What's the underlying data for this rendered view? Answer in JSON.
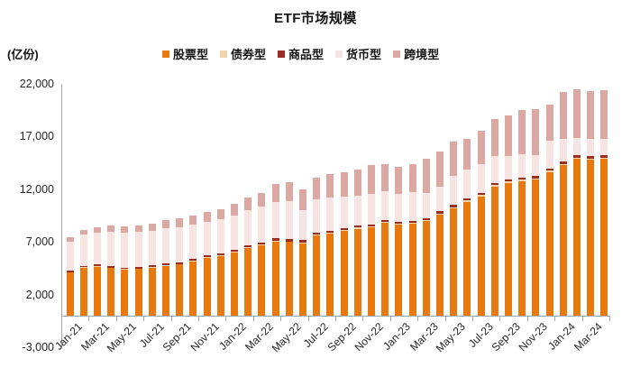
{
  "title": "ETF市场规模",
  "unit_label": "(亿份)",
  "legend": [
    {
      "label": "股票型",
      "color": "#e8790f"
    },
    {
      "label": "债券型",
      "color": "#f0d3a8"
    },
    {
      "label": "商品型",
      "color": "#9b2d23"
    },
    {
      "label": "货币型",
      "color": "#f5e4e1"
    },
    {
      "label": "跨境型",
      "color": "#dba8a3"
    }
  ],
  "colors": {
    "axis_line": "#a6a6a6",
    "text": "#262626",
    "title_text": "#141414"
  },
  "chart_data": {
    "type": "bar",
    "stacked": true,
    "title": "ETF市场规模",
    "unit": "亿份",
    "grid": false,
    "legend_position": "top",
    "categories": [
      "Jan-21",
      "Feb-21",
      "Mar-21",
      "Apr-21",
      "May-21",
      "Jun-21",
      "Jul-21",
      "Aug-21",
      "Sep-21",
      "Oct-21",
      "Nov-21",
      "Dec-21",
      "Jan-22",
      "Feb-22",
      "Mar-22",
      "Apr-22",
      "May-22",
      "Jun-22",
      "Jul-22",
      "Aug-22",
      "Sep-22",
      "Oct-22",
      "Nov-22",
      "Dec-22",
      "Jan-23",
      "Feb-23",
      "Mar-23",
      "Apr-23",
      "May-23",
      "Jun-23",
      "Jul-23",
      "Aug-23",
      "Sep-23",
      "Oct-23",
      "Nov-23",
      "Dec-23",
      "Jan-24",
      "Feb-24",
      "Mar-24",
      "Apr-24"
    ],
    "series": [
      {
        "name": "股票型",
        "color": "#e8790f",
        "values": [
          4100,
          4530,
          4650,
          4500,
          4360,
          4420,
          4530,
          4700,
          4850,
          5120,
          5460,
          5640,
          6000,
          6400,
          6690,
          7060,
          6980,
          6890,
          7600,
          7750,
          8030,
          8260,
          8400,
          8780,
          8610,
          8690,
          8980,
          9600,
          10200,
          10830,
          11320,
          12260,
          12600,
          12780,
          12920,
          13630,
          14290,
          14870,
          14810,
          14890
        ]
      },
      {
        "name": "债券型",
        "color": "#f0d3a8",
        "values": [
          52,
          54,
          56,
          58,
          60,
          62,
          64,
          66,
          68,
          70,
          72,
          74,
          76,
          78,
          80,
          82,
          84,
          86,
          88,
          90,
          92,
          94,
          96,
          98,
          100,
          102,
          104,
          106,
          108,
          110,
          112,
          114,
          116,
          118,
          120,
          122,
          124,
          126,
          128,
          130
        ]
      },
      {
        "name": "商品型",
        "color": "#9b2d23",
        "values": [
          150,
          152,
          154,
          156,
          158,
          160,
          162,
          164,
          166,
          168,
          170,
          172,
          174,
          176,
          178,
          180,
          182,
          184,
          186,
          188,
          190,
          192,
          194,
          196,
          198,
          200,
          202,
          204,
          206,
          208,
          210,
          212,
          214,
          216,
          218,
          220,
          222,
          224,
          226,
          228
        ]
      },
      {
        "name": "货币型",
        "color": "#f5e4e1",
        "values": [
          2690,
          2980,
          3060,
          3280,
          3330,
          3300,
          3320,
          3380,
          3340,
          3270,
          3230,
          3240,
          3290,
          3400,
          3420,
          3480,
          3590,
          2890,
          3170,
          3230,
          3030,
          2880,
          2850,
          2780,
          2650,
          2740,
          2360,
          2340,
          2800,
          2700,
          2750,
          2590,
          2250,
          2220,
          1990,
          2640,
          2110,
          1670,
          1650,
          1540
        ]
      },
      {
        "name": "跨境型",
        "color": "#dba8a3",
        "values": [
          420,
          460,
          510,
          550,
          590,
          640,
          690,
          740,
          790,
          850,
          910,
          970,
          1060,
          1160,
          1310,
          1700,
          1830,
          1920,
          2060,
          2160,
          2250,
          2420,
          2730,
          2560,
          2570,
          2680,
          3260,
          3310,
          3240,
          2920,
          3170,
          3530,
          3830,
          4170,
          4340,
          3460,
          4500,
          4640,
          4480,
          4630
        ]
      }
    ],
    "y_axis": {
      "min": -3000,
      "max": 22000,
      "step": 5000,
      "tick_labels": [
        "22,000",
        "17,000",
        "12,000",
        "7,000",
        "2,000",
        "-3,000"
      ]
    },
    "x_axis": {
      "label_every": 2,
      "tick_labels": [
        "Jan-21",
        "Mar-21",
        "May-21",
        "Jul-21",
        "Sep-21",
        "Nov-21",
        "Jan-22",
        "Mar-22",
        "May-22",
        "Jul-22",
        "Sep-22",
        "Nov-22",
        "Jan-23",
        "Mar-23",
        "May-23",
        "Jul-23",
        "Sep-23",
        "Nov-23",
        "Jan-24",
        "Mar-24"
      ]
    }
  }
}
